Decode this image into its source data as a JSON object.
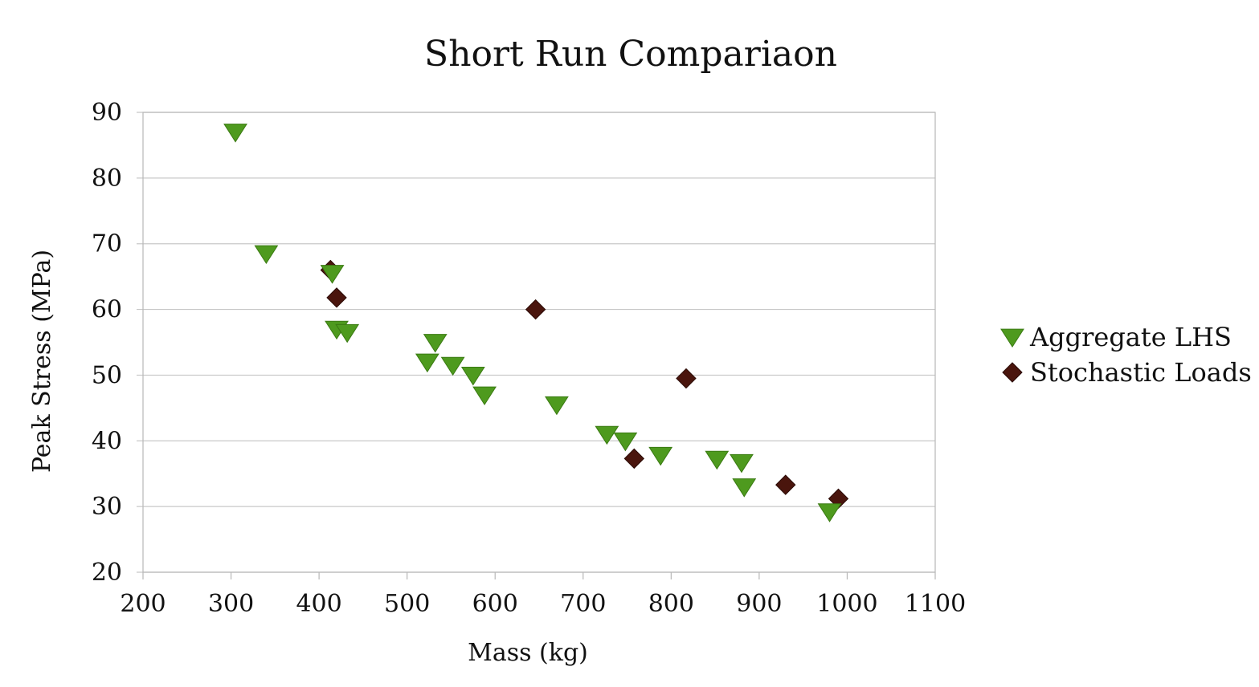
{
  "chart_data": {
    "type": "scatter",
    "title": "Short Run Compariaon",
    "xlabel": "Mass (kg)",
    "ylabel": "Peak Stress (MPa)",
    "xlim": [
      200,
      1100
    ],
    "ylim": [
      20,
      90
    ],
    "xticks": [
      200,
      300,
      400,
      500,
      600,
      700,
      800,
      900,
      1000,
      1100
    ],
    "yticks": [
      20,
      30,
      40,
      50,
      60,
      70,
      80,
      90
    ],
    "grid": "horizontal",
    "legend_position": "right",
    "series": [
      {
        "name": "Aggregate LHS",
        "marker": "triangle-down",
        "color": "#4e9a1e",
        "points": [
          [
            305,
            87
          ],
          [
            340,
            68.5
          ],
          [
            415,
            65.5
          ],
          [
            420,
            57
          ],
          [
            432,
            56.5
          ],
          [
            523,
            52
          ],
          [
            532,
            55
          ],
          [
            552,
            51.5
          ],
          [
            575,
            50
          ],
          [
            588,
            47
          ],
          [
            670,
            45.5
          ],
          [
            727,
            41
          ],
          [
            748,
            40
          ],
          [
            788,
            37.8
          ],
          [
            852,
            37.2
          ],
          [
            880,
            36.7
          ],
          [
            883,
            33
          ],
          [
            980,
            29.2
          ]
        ]
      },
      {
        "name": "Stochastic Loads",
        "marker": "diamond",
        "color": "#4a150d",
        "points": [
          [
            413,
            66
          ],
          [
            420,
            61.8
          ],
          [
            646,
            60
          ],
          [
            758,
            37.3
          ],
          [
            817,
            49.5
          ],
          [
            930,
            33.3
          ],
          [
            990,
            31.2
          ]
        ]
      }
    ]
  }
}
